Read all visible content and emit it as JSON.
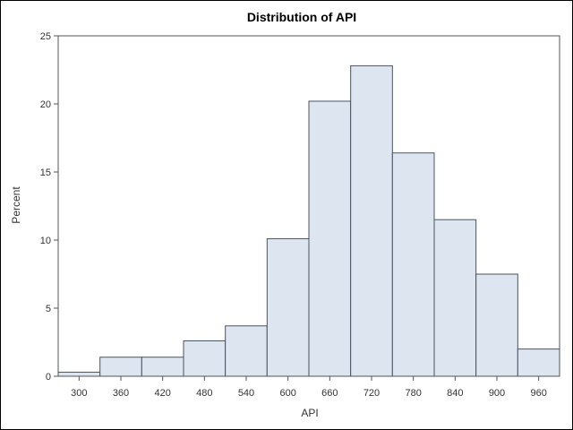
{
  "chart_data": {
    "type": "bar",
    "title": "Distribution of API",
    "xlabel": "API",
    "ylabel": "Percent",
    "x_ticks": [
      "300",
      "360",
      "420",
      "480",
      "540",
      "600",
      "660",
      "720",
      "780",
      "840",
      "900",
      "960"
    ],
    "y_ticks": [
      "0",
      "5",
      "10",
      "15",
      "20",
      "25"
    ],
    "ylim": [
      0,
      25
    ],
    "xlim": [
      270,
      990
    ],
    "bin_width": 60,
    "categories": [
      "300",
      "360",
      "420",
      "480",
      "540",
      "600",
      "660",
      "720",
      "780",
      "840",
      "900",
      "960"
    ],
    "values": [
      0.3,
      1.4,
      1.4,
      2.6,
      3.7,
      10.1,
      20.2,
      22.8,
      16.4,
      11.5,
      7.5,
      2.0
    ],
    "colors": {
      "bar_fill": "#dce5f0",
      "bar_stroke": "#4a5560"
    },
    "grid": false,
    "legend": "none"
  }
}
